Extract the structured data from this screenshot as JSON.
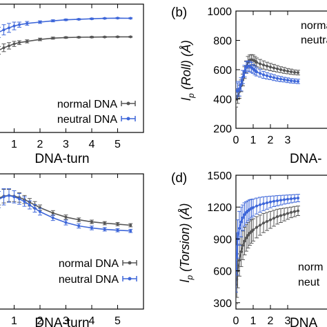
{
  "series_colors": {
    "normal": "#555555",
    "neutral": "#3d66d9"
  },
  "chart_data": [
    {
      "panel": "a",
      "type": "line",
      "panel_label": "",
      "xlabel": "DNA-turn",
      "ylabel": "",
      "xlim": [
        0.4,
        6.0
      ],
      "ylim": [
        0,
        1
      ],
      "xticks": [
        1,
        2,
        3,
        4,
        5
      ],
      "xtick_labels": [
        "1",
        "2",
        "3",
        "4",
        "5"
      ],
      "yticks": [],
      "ytick_labels": [],
      "legend": "bottom-right",
      "series": [
        {
          "name": "normal DNA",
          "key": "normal",
          "x": [
            0.4,
            0.6,
            0.8,
            1.0,
            1.2,
            1.5,
            2.0,
            2.5,
            3.0,
            3.5,
            4.0,
            4.5,
            5.0,
            5.5
          ],
          "y": [
            0.64,
            0.66,
            0.675,
            0.69,
            0.7,
            0.71,
            0.725,
            0.735,
            0.74,
            0.742,
            0.743,
            0.744,
            0.745,
            0.745
          ],
          "err": [
            0.03,
            0.03,
            0.025,
            0.02,
            0.015,
            0.012,
            0.01,
            0.008,
            0.006,
            0.005,
            0.005,
            0.004,
            0.004,
            0.004
          ]
        },
        {
          "name": "neutral DNA",
          "key": "neutral",
          "x": [
            0.4,
            0.6,
            0.8,
            1.0,
            1.2,
            1.5,
            2.0,
            2.5,
            3.0,
            3.5,
            4.0,
            4.5,
            5.0,
            5.5
          ],
          "y": [
            0.78,
            0.8,
            0.815,
            0.83,
            0.84,
            0.85,
            0.86,
            0.87,
            0.878,
            0.882,
            0.886,
            0.889,
            0.891,
            0.89
          ],
          "err": [
            0.04,
            0.04,
            0.035,
            0.03,
            0.02,
            0.015,
            0.01,
            0.008,
            0.006,
            0.005,
            0.005,
            0.004,
            0.004,
            0.004
          ]
        }
      ]
    },
    {
      "panel": "b",
      "type": "line",
      "panel_label": "(b)",
      "xlabel": "DNA-",
      "ylabel": "l_p (Roll) (Å)",
      "ylabel_parts": [
        "l",
        "p",
        " (Roll) (Å)"
      ],
      "xlim": [
        0,
        5.6
      ],
      "ylim": [
        200,
        1000
      ],
      "xticks": [
        0,
        1,
        2,
        3
      ],
      "xtick_labels": [
        "0",
        "1",
        "2",
        "3"
      ],
      "yticks": [
        200,
        400,
        600,
        800,
        1000
      ],
      "ytick_labels": [
        "200",
        "400",
        "600",
        "800",
        "1000"
      ],
      "legend": "top-right",
      "legend_text": [
        "norma",
        "neutra"
      ],
      "series": [
        {
          "name": "normal DNA",
          "key": "normal",
          "x": [
            0,
            0.1,
            0.2,
            0.3,
            0.4,
            0.5,
            0.6,
            0.7,
            0.8,
            0.9,
            1.0,
            1.1,
            1.2,
            1.4,
            1.6,
            1.8,
            2.0,
            2.2,
            2.4,
            2.6,
            2.8,
            3.0,
            3.2,
            3.4,
            3.6
          ],
          "y": [
            395,
            420,
            450,
            490,
            530,
            580,
            620,
            650,
            665,
            668,
            665,
            660,
            650,
            640,
            632,
            625,
            618,
            612,
            606,
            600,
            595,
            590,
            586,
            582,
            580
          ],
          "err": [
            50,
            50,
            45,
            40,
            40,
            40,
            40,
            40,
            35,
            35,
            35,
            30,
            30,
            30,
            28,
            26,
            25,
            24,
            22,
            20,
            20,
            18,
            18,
            16,
            16
          ]
        },
        {
          "name": "neutral DNA",
          "key": "neutral",
          "x": [
            0,
            0.1,
            0.2,
            0.3,
            0.4,
            0.5,
            0.6,
            0.7,
            0.8,
            0.9,
            1.0,
            1.1,
            1.2,
            1.4,
            1.6,
            1.8,
            2.0,
            2.2,
            2.4,
            2.6,
            2.8,
            3.0,
            3.2,
            3.4,
            3.6
          ],
          "y": [
            460,
            455,
            470,
            500,
            550,
            590,
            615,
            625,
            622,
            615,
            605,
            595,
            585,
            575,
            565,
            558,
            552,
            546,
            540,
            536,
            532,
            528,
            524,
            522,
            520
          ],
          "err": [
            60,
            55,
            50,
            45,
            45,
            40,
            40,
            35,
            35,
            35,
            30,
            30,
            28,
            26,
            24,
            22,
            20,
            20,
            18,
            18,
            16,
            16,
            15,
            15,
            15
          ]
        }
      ]
    },
    {
      "panel": "c",
      "type": "line",
      "panel_label": "",
      "xlabel": "DNA-turn",
      "ylabel": "",
      "xlim": [
        0.4,
        6.0
      ],
      "ylim": [
        0,
        1
      ],
      "xticks": [
        1,
        2,
        3,
        4,
        5
      ],
      "xtick_labels": [
        "1",
        "2",
        "3",
        "4",
        "5"
      ],
      "yticks": [],
      "ytick_labels": [],
      "legend": "bottom-right",
      "series": [
        {
          "name": "normal DNA",
          "key": "normal",
          "x": [
            0.4,
            0.6,
            0.8,
            1.0,
            1.2,
            1.4,
            1.6,
            1.8,
            2.0,
            2.5,
            3.0,
            3.5,
            4.0,
            4.5,
            5.0,
            5.5
          ],
          "y": [
            0.82,
            0.835,
            0.84,
            0.835,
            0.825,
            0.81,
            0.79,
            0.77,
            0.75,
            0.71,
            0.68,
            0.66,
            0.645,
            0.635,
            0.628,
            0.62
          ],
          "err": [
            0.05,
            0.05,
            0.045,
            0.04,
            0.035,
            0.03,
            0.028,
            0.025,
            0.02,
            0.018,
            0.016,
            0.014,
            0.013,
            0.012,
            0.012,
            0.012
          ]
        },
        {
          "name": "neutral DNA",
          "key": "neutral",
          "x": [
            0.4,
            0.6,
            0.8,
            1.0,
            1.2,
            1.4,
            1.6,
            1.8,
            2.0,
            2.5,
            3.0,
            3.5,
            4.0,
            4.5,
            5.0,
            5.5
          ],
          "y": [
            0.81,
            0.83,
            0.84,
            0.83,
            0.815,
            0.795,
            0.77,
            0.745,
            0.72,
            0.675,
            0.64,
            0.615,
            0.6,
            0.59,
            0.583,
            0.578
          ],
          "err": [
            0.06,
            0.06,
            0.05,
            0.045,
            0.04,
            0.035,
            0.03,
            0.028,
            0.025,
            0.02,
            0.018,
            0.016,
            0.014,
            0.013,
            0.012,
            0.012
          ]
        }
      ]
    },
    {
      "panel": "d",
      "type": "line",
      "panel_label": "(d)",
      "xlabel": "DNA",
      "ylabel": "l_p (Torsion) (Å)",
      "ylabel_parts": [
        "l",
        "p",
        " (Torsion) (Å)"
      ],
      "xlim": [
        0,
        5.6
      ],
      "ylim": [
        240,
        1500
      ],
      "xticks": [
        0,
        1,
        2,
        3
      ],
      "xtick_labels": [
        "0",
        "1",
        "2",
        "3"
      ],
      "yticks": [
        300,
        600,
        900,
        1200,
        1500
      ],
      "ytick_labels": [
        "300",
        "600",
        "900",
        "1200",
        "1500"
      ],
      "legend": "bottom-right",
      "legend_text": [
        "norm",
        "neut"
      ],
      "series": [
        {
          "name": "normal DNA",
          "key": "normal",
          "x": [
            0,
            0.05,
            0.1,
            0.2,
            0.3,
            0.4,
            0.5,
            0.6,
            0.7,
            0.8,
            0.9,
            1.0,
            1.2,
            1.4,
            1.6,
            1.8,
            2.0,
            2.2,
            2.4,
            2.6,
            2.8,
            3.0,
            3.2,
            3.4,
            3.6
          ],
          "y": [
            470,
            520,
            600,
            700,
            780,
            840,
            880,
            910,
            935,
            955,
            970,
            985,
            1010,
            1030,
            1050,
            1065,
            1080,
            1095,
            1110,
            1120,
            1130,
            1140,
            1150,
            1158,
            1165
          ],
          "err": [
            180,
            170,
            160,
            150,
            140,
            135,
            130,
            125,
            120,
            115,
            110,
            105,
            100,
            95,
            90,
            85,
            80,
            75,
            70,
            65,
            60,
            55,
            50,
            48,
            45
          ]
        },
        {
          "name": "neutral DNA",
          "key": "neutral",
          "x": [
            0,
            0.05,
            0.1,
            0.2,
            0.3,
            0.4,
            0.5,
            0.6,
            0.7,
            0.8,
            0.9,
            1.0,
            1.2,
            1.4,
            1.6,
            1.8,
            2.0,
            2.2,
            2.4,
            2.6,
            2.8,
            3.0,
            3.2,
            3.4,
            3.6
          ],
          "y": [
            620,
            760,
            900,
            1000,
            1060,
            1100,
            1130,
            1150,
            1165,
            1178,
            1188,
            1196,
            1210,
            1222,
            1232,
            1240,
            1248,
            1255,
            1260,
            1265,
            1270,
            1274,
            1278,
            1282,
            1285
          ],
          "err": [
            220,
            200,
            180,
            160,
            140,
            120,
            110,
            100,
            95,
            90,
            85,
            80,
            75,
            70,
            65,
            60,
            55,
            50,
            48,
            45,
            42,
            40,
            38,
            36,
            35
          ]
        }
      ]
    }
  ],
  "legends": {
    "a": [
      "normal DNA",
      "neutral DNA"
    ],
    "c": [
      "normal DNA",
      "neutral DNA"
    ]
  }
}
